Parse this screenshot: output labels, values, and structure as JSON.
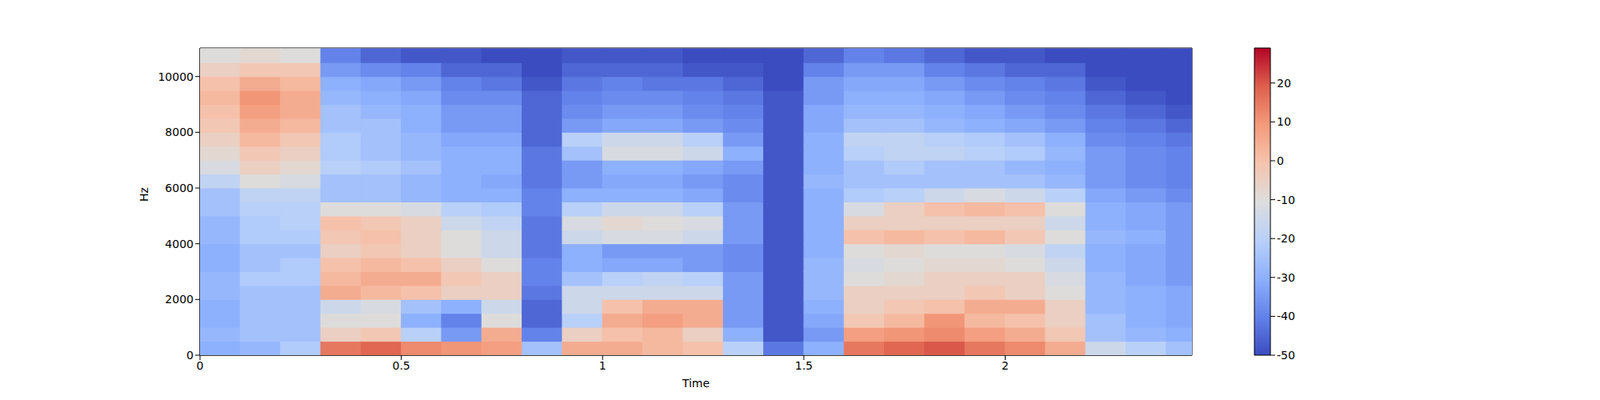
{
  "chart_data": {
    "type": "heatmap",
    "xlabel": "Time",
    "ylabel": "Hz",
    "x": [
      0.05,
      0.15,
      0.25,
      0.35,
      0.45,
      0.55,
      0.65,
      0.75,
      0.85,
      0.95,
      1.05,
      1.15,
      1.25,
      1.35,
      1.45,
      1.55,
      1.65,
      1.75,
      1.85,
      1.95,
      2.05,
      2.15,
      2.25,
      2.35,
      2.45
    ],
    "y": [
      250,
      750,
      1250,
      1750,
      2250,
      2750,
      3250,
      3750,
      4250,
      4750,
      5250,
      5750,
      6250,
      6750,
      7250,
      7750,
      8250,
      8750,
      9250,
      9750,
      10250,
      10750
    ],
    "values": [
      [
        -30,
        -28,
        -30,
        -30,
        -28,
        -28,
        -30,
        -30,
        -28,
        -28,
        -25,
        -25,
        -18,
        -12,
        -8,
        -5,
        -2,
        0,
        2,
        0,
        -5,
        -10
      ],
      [
        -28,
        -25,
        -25,
        -25,
        -25,
        -22,
        -25,
        -25,
        -22,
        -22,
        -20,
        -18,
        -10,
        -5,
        -2,
        2,
        5,
        8,
        10,
        5,
        -2,
        -8
      ],
      [
        -22,
        -25,
        -25,
        -25,
        -25,
        -22,
        -22,
        -25,
        -22,
        -20,
        -20,
        -18,
        -12,
        -8,
        -5,
        -2,
        2,
        5,
        5,
        2,
        -2,
        -10
      ],
      [
        15,
        -5,
        -10,
        -15,
        5,
        2,
        0,
        -5,
        -2,
        0,
        -10,
        -25,
        -25,
        -20,
        -22,
        -22,
        -25,
        -25,
        -28,
        -30,
        -35,
        -40
      ],
      [
        18,
        -2,
        -10,
        -12,
        2,
        5,
        2,
        -2,
        0,
        -2,
        -10,
        -25,
        -25,
        -22,
        -25,
        -25,
        -25,
        -28,
        -30,
        -32,
        -38,
        -45
      ],
      [
        12,
        -20,
        -30,
        -25,
        0,
        5,
        0,
        -5,
        -5,
        -5,
        -12,
        -28,
        -28,
        -25,
        -28,
        -28,
        -30,
        -30,
        -32,
        -35,
        -40,
        -48
      ],
      [
        10,
        -35,
        -40,
        -30,
        -5,
        -2,
        -5,
        -10,
        -10,
        -15,
        -20,
        -30,
        -30,
        -30,
        -30,
        -32,
        -35,
        -35,
        -38,
        -40,
        -45,
        -48
      ],
      [
        8,
        5,
        -10,
        -15,
        -5,
        -5,
        -10,
        -15,
        -15,
        -18,
        -22,
        -30,
        -32,
        -30,
        -30,
        -32,
        -35,
        -35,
        -38,
        -42,
        -45,
        -50
      ],
      [
        -25,
        -40,
        -45,
        -45,
        -42,
        -40,
        -40,
        -42,
        -42,
        -42,
        -40,
        -40,
        -42,
        -42,
        -42,
        -45,
        -45,
        -45,
        -45,
        -48,
        -50,
        -50
      ],
      [
        5,
        -5,
        -20,
        -15,
        -15,
        -25,
        -30,
        -30,
        -15,
        -12,
        -20,
        -30,
        -35,
        -35,
        -25,
        -20,
        -35,
        -38,
        -40,
        -42,
        -45,
        -48
      ],
      [
        5,
        0,
        5,
        0,
        -15,
        -20,
        -32,
        -35,
        -12,
        -8,
        -15,
        -30,
        -32,
        -30,
        -12,
        -15,
        -32,
        -35,
        -38,
        -40,
        -45,
        -48
      ],
      [
        2,
        2,
        8,
        5,
        -15,
        -18,
        -32,
        -35,
        -12,
        -10,
        -15,
        -30,
        -32,
        -30,
        -12,
        -15,
        -32,
        -35,
        -38,
        -42,
        -45,
        -48
      ],
      [
        0,
        -5,
        5,
        5,
        -15,
        -20,
        -35,
        -35,
        -15,
        -12,
        -20,
        -32,
        -35,
        -32,
        -15,
        -20,
        -35,
        -38,
        -40,
        -42,
        -48,
        -50
      ],
      [
        -20,
        -30,
        -35,
        -35,
        -35,
        -35,
        -38,
        -38,
        -35,
        -35,
        -35,
        -38,
        -38,
        -35,
        -30,
        -35,
        -38,
        -40,
        -42,
        -45,
        -48,
        -50
      ],
      [
        -42,
        -48,
        -48,
        -48,
        -48,
        -48,
        -48,
        -48,
        -48,
        -48,
        -48,
        -48,
        -48,
        -48,
        -48,
        -48,
        -48,
        -48,
        -48,
        -50,
        -50,
        -50
      ],
      [
        -30,
        -35,
        -32,
        -30,
        -28,
        -28,
        -28,
        -30,
        -30,
        -30,
        -30,
        -30,
        -28,
        -30,
        -30,
        -30,
        -32,
        -32,
        -35,
        -35,
        -40,
        -45
      ],
      [
        15,
        8,
        -2,
        -5,
        -5,
        -10,
        -12,
        -10,
        0,
        -5,
        -12,
        -22,
        -25,
        -25,
        -20,
        -18,
        -25,
        -28,
        -30,
        -32,
        -35,
        -40
      ],
      [
        18,
        10,
        2,
        -2,
        -5,
        -8,
        -10,
        -8,
        2,
        -5,
        -5,
        -20,
        -25,
        -22,
        -18,
        -18,
        -25,
        -28,
        -30,
        -32,
        -35,
        -42
      ],
      [
        20,
        12,
        10,
        0,
        -5,
        -5,
        -8,
        -10,
        0,
        -5,
        0,
        -15,
        -25,
        -25,
        -18,
        -20,
        -28,
        -30,
        -32,
        -35,
        -40,
        -45
      ],
      [
        15,
        8,
        2,
        5,
        -2,
        -5,
        -8,
        -10,
        2,
        -5,
        2,
        -12,
        -25,
        -25,
        -20,
        -22,
        -30,
        -32,
        -35,
        -38,
        -42,
        -48
      ],
      [
        12,
        5,
        0,
        5,
        -5,
        -5,
        -10,
        -12,
        -2,
        -5,
        0,
        -15,
        -25,
        -28,
        -22,
        -25,
        -32,
        -35,
        -38,
        -40,
        -45,
        -48
      ],
      [
        5,
        -2,
        -5,
        -5,
        -10,
        -12,
        -15,
        -18,
        -10,
        -15,
        -10,
        -20,
        -28,
        -30,
        -28,
        -30,
        -35,
        -38,
        -40,
        -42,
        -45,
        -50
      ],
      [
        -15,
        -25,
        -25,
        -28,
        -28,
        -28,
        -30,
        -30,
        -28,
        -30,
        -30,
        -32,
        -35,
        -35,
        -35,
        -38,
        -40,
        -42,
        -45,
        -48,
        -50,
        -50
      ],
      [
        -20,
        -28,
        -30,
        -30,
        -30,
        -32,
        -32,
        -32,
        -30,
        -32,
        -32,
        -35,
        -38,
        -38,
        -38,
        -40,
        -42,
        -45,
        -48,
        -50,
        -50,
        -50
      ],
      [
        -25,
        -30,
        -32,
        -32,
        -32,
        -35,
        -35,
        -35,
        -35,
        -35,
        -35,
        -38,
        -40,
        -40,
        -40,
        -42,
        -45,
        -48,
        -50,
        -50,
        -50,
        -50
      ]
    ],
    "xlim": [
      0,
      2.464
    ],
    "ylim": [
      0,
      11025
    ],
    "xticks": [
      0,
      0.5,
      1,
      1.5,
      2
    ],
    "yticks": [
      0,
      2000,
      4000,
      6000,
      8000,
      10000
    ],
    "colorbar": {
      "range": [
        -50,
        29
      ],
      "ticks": [
        -50,
        -40,
        -30,
        -20,
        -10,
        0,
        10,
        20
      ]
    }
  }
}
